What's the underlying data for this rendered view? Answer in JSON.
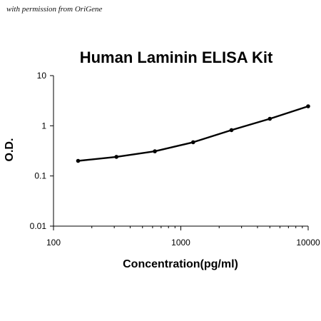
{
  "credit_text": "with permission from OriGene",
  "chart_data": {
    "type": "line",
    "title": "Human Laminin ELISA Kit",
    "xlabel": "Concentration(pg/ml)",
    "ylabel": "O.D.",
    "x_scale": "log",
    "y_scale": "log",
    "xlim": [
      100,
      10000
    ],
    "ylim": [
      0.01,
      10
    ],
    "x_ticks": [
      100,
      1000,
      10000
    ],
    "x_tick_labels": [
      "100",
      "1000",
      "10000"
    ],
    "y_ticks": [
      10,
      1,
      0.1,
      0.01
    ],
    "y_tick_labels": [
      "10",
      "1",
      "0.1",
      "0.01"
    ],
    "grid": false,
    "series": [
      {
        "x": [
          156,
          312,
          625,
          1250,
          2500,
          5000,
          10000
        ],
        "y": [
          0.2,
          0.24,
          0.31,
          0.47,
          0.82,
          1.38,
          2.45
        ]
      }
    ],
    "line_color": "#000000",
    "marker_color": "#000000"
  }
}
